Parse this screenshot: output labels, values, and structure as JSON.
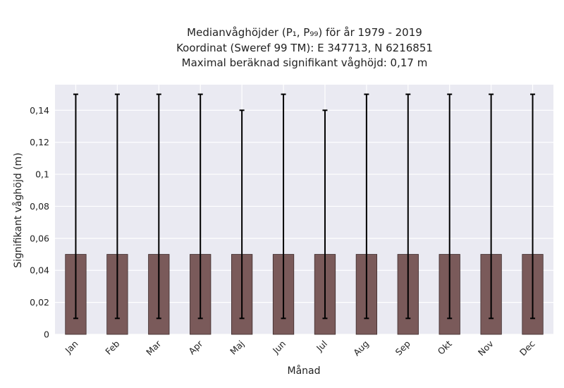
{
  "chart_data": {
    "type": "bar",
    "title_lines": [
      "Medianvåghöjder (P₁, P₉₉) för år 1979 - 2019",
      "Koordinat (Sweref 99 TM): E 347713, N 6216851",
      "Maximal beräknad signifikant våghöjd: 0,17 m"
    ],
    "xlabel": "Månad",
    "ylabel": "Signifikant våghöjd (m)",
    "categories": [
      "Jan",
      "Feb",
      "Mar",
      "Apr",
      "Maj",
      "Jun",
      "Jul",
      "Aug",
      "Sep",
      "Okt",
      "Nov",
      "Dec"
    ],
    "series": [
      {
        "values": [
          0.05,
          0.05,
          0.05,
          0.05,
          0.05,
          0.05,
          0.05,
          0.05,
          0.05,
          0.05,
          0.05,
          0.05
        ],
        "p1": [
          0.01,
          0.01,
          0.01,
          0.01,
          0.01,
          0.01,
          0.01,
          0.01,
          0.01,
          0.01,
          0.01,
          0.01
        ],
        "p99": [
          0.15,
          0.15,
          0.15,
          0.15,
          0.14,
          0.15,
          0.14,
          0.15,
          0.15,
          0.15,
          0.15,
          0.15
        ]
      }
    ],
    "ylim": [
      0,
      0.156
    ],
    "yticks": [
      0,
      0.02,
      0.04,
      0.06,
      0.08,
      0.1,
      0.12,
      0.14
    ],
    "ytick_labels": [
      "0",
      "0,02",
      "0,04",
      "0,06",
      "0,08",
      "0,1",
      "0,12",
      "0,14"
    ],
    "grid": true,
    "colors": {
      "bar": "#7a5a5a",
      "bar_edge": "#3d2b2b",
      "error": "#000000",
      "plot_bg": "#eaeaf2",
      "grid": "#ffffff"
    }
  }
}
